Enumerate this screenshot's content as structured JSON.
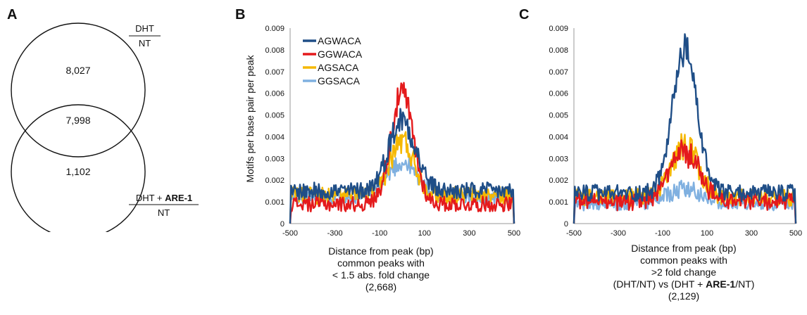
{
  "panels": {
    "a": {
      "letter": "A",
      "top_label_num": "DHT",
      "top_label_den": "NT",
      "bottom_label_num_prefix": "DHT + ",
      "bottom_label_num_bold": "ARE-1",
      "bottom_label_den": "NT",
      "top_only": "8,027",
      "overlap": "7,998",
      "bottom_only": "1,102"
    },
    "b": {
      "letter": "B",
      "caption": [
        "Distance from peak (bp)",
        "common peaks with",
        "< 1.5 abs. fold change",
        "(2,668)"
      ]
    },
    "c": {
      "letter": "C",
      "caption_lines": [
        "Distance from peak (bp)",
        "common peaks with",
        ">2 fold change"
      ],
      "caption_line4_prefix": "(DHT/NT) vs (DHT + ",
      "caption_line4_bold": "ARE-1",
      "caption_line4_suffix": "/NT)",
      "caption_line5": "(2,129)"
    }
  },
  "colors": {
    "AGWACA": "#1f4e87",
    "GGWACA": "#e41a1c",
    "AGSACA": "#f5b800",
    "GGSACA": "#7fb0e0"
  },
  "chart_data": [
    {
      "type": "line",
      "panel": "B",
      "ylabel": "Motifs per base pair per peak",
      "ylim": [
        0,
        0.009
      ],
      "yticks": [
        "0",
        "0.001",
        "0.002",
        "0.003",
        "0.004",
        "0.005",
        "0.006",
        "0.007",
        "0.008",
        "0.009"
      ],
      "xlim": [
        -500,
        500
      ],
      "xticks": [
        "-500",
        "-300",
        "-100",
        "100",
        "300",
        "500"
      ],
      "legend_position": "top-left",
      "series": [
        {
          "name": "AGWACA",
          "baseline": 0.0015,
          "peak": 0.0048,
          "width": 60,
          "noise": 0.0004
        },
        {
          "name": "GGWACA",
          "baseline": 0.0009,
          "peak": 0.006,
          "width": 50,
          "noise": 0.00035
        },
        {
          "name": "AGSACA",
          "baseline": 0.0013,
          "peak": 0.0038,
          "width": 55,
          "noise": 0.0004
        },
        {
          "name": "GGSACA",
          "baseline": 0.0012,
          "peak": 0.0028,
          "width": 70,
          "noise": 0.0003
        }
      ]
    },
    {
      "type": "line",
      "panel": "C",
      "ylabel": "",
      "ylim": [
        0,
        0.009
      ],
      "yticks": [
        "0",
        "0.001",
        "0.002",
        "0.003",
        "0.004",
        "0.005",
        "0.006",
        "0.007",
        "0.008",
        "0.009"
      ],
      "xlim": [
        -500,
        500
      ],
      "xticks": [
        "-500",
        "-300",
        "-100",
        "100",
        "300",
        "500"
      ],
      "series": [
        {
          "name": "AGWACA",
          "baseline": 0.0014,
          "peak": 0.008,
          "width": 55,
          "noise": 0.0004
        },
        {
          "name": "GGWACA",
          "baseline": 0.001,
          "peak": 0.0033,
          "width": 65,
          "noise": 0.0004
        },
        {
          "name": "AGSACA",
          "baseline": 0.0012,
          "peak": 0.0036,
          "width": 60,
          "noise": 0.0004
        },
        {
          "name": "GGSACA",
          "baseline": 0.0009,
          "peak": 0.0016,
          "width": 80,
          "noise": 0.0003
        }
      ]
    }
  ]
}
